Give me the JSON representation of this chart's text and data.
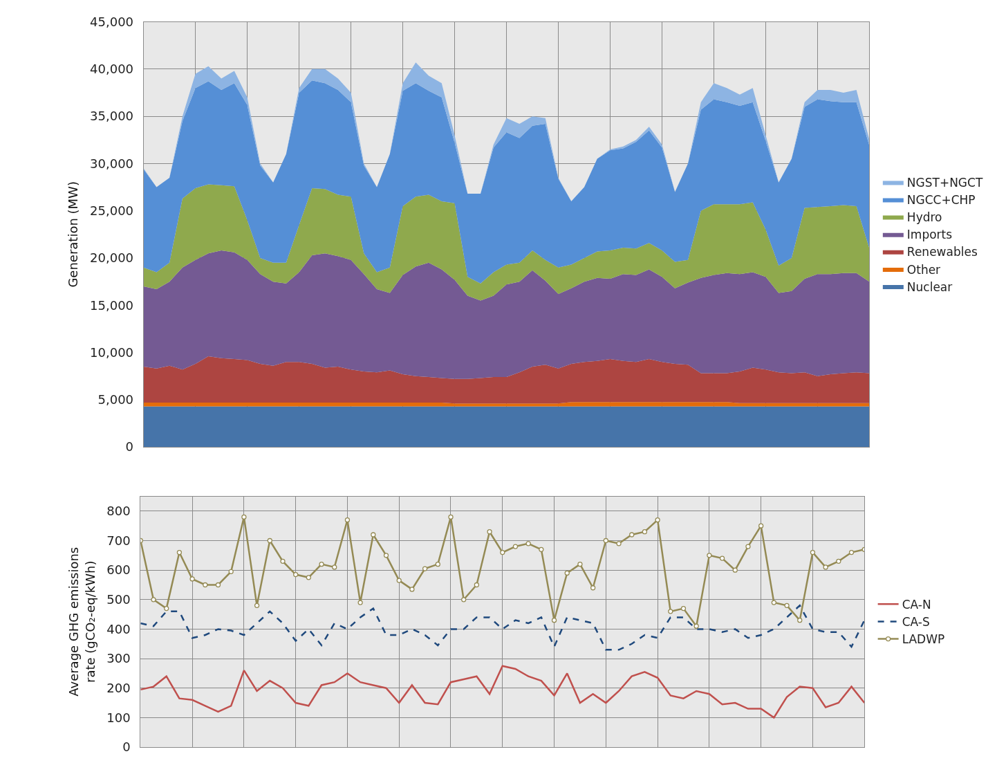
{
  "chart_data": [
    {
      "type": "area",
      "stacked": true,
      "ylabel": "Generation (MW)",
      "legend": "right",
      "grid": true,
      "categories": [
        null,
        null,
        null,
        null,
        null,
        null,
        null,
        null,
        null,
        null,
        null,
        null,
        null,
        null,
        null,
        null,
        null,
        null,
        null,
        null,
        null,
        null,
        null,
        null,
        null,
        null,
        null,
        null,
        null,
        null,
        null,
        null,
        null,
        null,
        null,
        null,
        null,
        null,
        null,
        null,
        null,
        null,
        null,
        null,
        null,
        null,
        null,
        null,
        null,
        null,
        null,
        null,
        null,
        null,
        null,
        null,
        null
      ],
      "ylim": [
        0,
        45000
      ],
      "yticks": [
        {
          "value": 0,
          "label": "0"
        },
        {
          "value": 5000,
          "label": "5,000"
        },
        {
          "value": 10000,
          "label": "10,000"
        },
        {
          "value": 15000,
          "label": "15,000"
        },
        {
          "value": 20000,
          "label": "20,000"
        },
        {
          "value": 25000,
          "label": "25,000"
        },
        {
          "value": 30000,
          "label": "30,000"
        },
        {
          "value": 35000,
          "label": "35,000"
        },
        {
          "value": 40000,
          "label": "40,000"
        },
        {
          "value": 45000,
          "label": "45,000"
        }
      ],
      "series": [
        {
          "name": "Nuclear",
          "color": "#4674a9",
          "values": [
            4300,
            4300,
            4300,
            4300,
            4300,
            4300,
            4300,
            4300,
            4300,
            4300,
            4300,
            4300,
            4300,
            4300,
            4300,
            4300,
            4300,
            4300,
            4300,
            4300,
            4300,
            4300,
            4300,
            4300,
            4300,
            4300,
            4300,
            4300,
            4300,
            4300,
            4300,
            4300,
            4300,
            4300,
            4300,
            4300,
            4300,
            4300,
            4300,
            4300,
            4300,
            4300,
            4300,
            4300,
            4300,
            4300,
            4300,
            4300,
            4300,
            4300,
            4300,
            4300,
            4300,
            4300,
            4300,
            4300,
            4300
          ]
        },
        {
          "name": "Other",
          "color": "#e46c0a",
          "values": [
            400,
            400,
            400,
            400,
            400,
            400,
            400,
            400,
            400,
            400,
            400,
            400,
            400,
            400,
            400,
            400,
            400,
            400,
            400,
            400,
            400,
            400,
            400,
            400,
            300,
            300,
            300,
            300,
            300,
            300,
            300,
            300,
            300,
            450,
            450,
            450,
            450,
            450,
            450,
            450,
            450,
            450,
            450,
            450,
            450,
            450,
            350,
            350,
            350,
            350,
            350,
            350,
            350,
            350,
            350,
            350,
            350
          ]
        },
        {
          "name": "Renewables",
          "color": "#ad4541",
          "values": [
            3800,
            3600,
            3900,
            3500,
            4100,
            4900,
            4700,
            4600,
            4500,
            4100,
            3900,
            4300,
            4300,
            4100,
            3700,
            3800,
            3500,
            3300,
            3200,
            3400,
            3000,
            2800,
            2700,
            2600,
            2600,
            2600,
            2700,
            2800,
            2800,
            3300,
            3900,
            4100,
            3700,
            4050,
            4250,
            4350,
            4550,
            4350,
            4250,
            4550,
            4250,
            4050,
            3950,
            3050,
            3050,
            3050,
            3350,
            3750,
            3550,
            3250,
            3150,
            3250,
            2850,
            3050,
            3150,
            3250,
            3150
          ]
        },
        {
          "name": "Imports",
          "color": "#745a93",
          "values": [
            8500,
            8400,
            8900,
            10800,
            11000,
            10900,
            11400,
            11300,
            10600,
            9500,
            8900,
            8300,
            9500,
            11500,
            12100,
            11700,
            11600,
            10300,
            8800,
            8200,
            10500,
            11600,
            12100,
            11500,
            10500,
            8800,
            8200,
            8600,
            9800,
            9600,
            10200,
            8900,
            7900,
            8000,
            8500,
            8800,
            8500,
            9200,
            9200,
            9500,
            9000,
            8000,
            8700,
            10100,
            10400,
            10600,
            10300,
            10100,
            9800,
            8400,
            8700,
            9900,
            10800,
            10600,
            10600,
            10500,
            9700
          ]
        },
        {
          "name": "Hydro",
          "color": "#8fa94d",
          "values": [
            2000,
            1800,
            2000,
            7300,
            7600,
            7300,
            6900,
            7000,
            4200,
            1700,
            2000,
            2200,
            5000,
            7100,
            6800,
            6500,
            6700,
            2200,
            1800,
            2700,
            7300,
            7400,
            7200,
            7200,
            8100,
            2000,
            1800,
            2500,
            2100,
            2000,
            2100,
            2200,
            2800,
            2500,
            2500,
            2800,
            3000,
            2800,
            2800,
            2800,
            2800,
            2800,
            2400,
            7100,
            7500,
            7300,
            7400,
            7400,
            5000,
            2900,
            3500,
            7500,
            7100,
            7200,
            7200,
            7100,
            3500
          ]
        },
        {
          "name": "NGCC+CHP",
          "color": "#558fd6",
          "values": [
            10400,
            9000,
            9000,
            8200,
            10600,
            10900,
            10100,
            10900,
            12200,
            9800,
            8500,
            11500,
            14000,
            11400,
            11200,
            11100,
            10000,
            9300,
            9000,
            12000,
            12200,
            12000,
            11000,
            11000,
            6400,
            8800,
            9500,
            13200,
            14000,
            13200,
            13200,
            14400,
            9400,
            6700,
            7500,
            9800,
            10600,
            10500,
            11300,
            11900,
            10900,
            7400,
            10200,
            10700,
            11100,
            10800,
            10400,
            10600,
            9400,
            8800,
            10500,
            10700,
            11400,
            11100,
            10900,
            11000,
            10900
          ]
        },
        {
          "name": "NGST+NGCT",
          "color": "#8db4e3",
          "values": [
            100,
            0,
            0,
            500,
            1500,
            1600,
            1200,
            1300,
            800,
            200,
            0,
            0,
            500,
            1200,
            1500,
            1200,
            1000,
            200,
            0,
            0,
            800,
            2200,
            1600,
            1500,
            800,
            0,
            0,
            300,
            1500,
            1500,
            1000,
            600,
            100,
            0,
            0,
            0,
            100,
            200,
            200,
            400,
            300,
            0,
            0,
            800,
            1700,
            1500,
            1200,
            1500,
            600,
            0,
            0,
            500,
            1000,
            1200,
            1000,
            1300,
            600
          ]
        }
      ]
    },
    {
      "type": "line",
      "ylabel": "Average GHG emissions\nrate (gCO₂-eq/kWh)",
      "legend": "right",
      "grid": true,
      "categories": [
        null,
        null,
        null,
        null,
        null,
        null,
        null,
        null,
        null,
        null,
        null,
        null,
        null,
        null,
        null,
        null,
        null,
        null,
        null,
        null,
        null,
        null,
        null,
        null,
        null,
        null,
        null,
        null,
        null,
        null,
        null,
        null,
        null,
        null,
        null,
        null,
        null,
        null,
        null,
        null,
        null,
        null,
        null,
        null,
        null,
        null,
        null,
        null,
        null,
        null,
        null,
        null,
        null,
        null,
        null,
        null,
        null
      ],
      "ylim": [
        0,
        850
      ],
      "yticks": [
        0,
        100,
        200,
        300,
        400,
        500,
        600,
        700,
        800
      ],
      "series": [
        {
          "name": "CA-N",
          "color": "#c0504d",
          "line_style": "solid",
          "marker": "none",
          "values": [
            195,
            205,
            240,
            165,
            160,
            140,
            120,
            140,
            260,
            190,
            225,
            200,
            150,
            140,
            210,
            220,
            250,
            220,
            210,
            200,
            150,
            210,
            150,
            145,
            220,
            230,
            240,
            180,
            275,
            265,
            240,
            225,
            175,
            250,
            150,
            180,
            150,
            190,
            240,
            255,
            235,
            175,
            165,
            190,
            180,
            145,
            150,
            130,
            130,
            100,
            170,
            205,
            200,
            135,
            150,
            205,
            150
          ]
        },
        {
          "name": "CA-S",
          "color": "#1f497d",
          "line_style": "dashed",
          "marker": "none",
          "values": [
            420,
            410,
            460,
            460,
            370,
            380,
            400,
            395,
            380,
            420,
            460,
            420,
            360,
            400,
            345,
            420,
            400,
            440,
            470,
            380,
            380,
            400,
            380,
            345,
            400,
            400,
            440,
            440,
            400,
            430,
            420,
            440,
            340,
            440,
            430,
            420,
            330,
            330,
            350,
            380,
            370,
            440,
            440,
            400,
            400,
            390,
            400,
            370,
            380,
            400,
            440,
            480,
            400,
            390,
            390,
            340,
            430
          ]
        },
        {
          "name": "LADWP",
          "color": "#948a54",
          "line_style": "solid",
          "marker": "circle",
          "values": [
            700,
            500,
            470,
            660,
            570,
            550,
            550,
            595,
            780,
            480,
            700,
            630,
            585,
            575,
            620,
            610,
            770,
            490,
            720,
            650,
            565,
            535,
            605,
            620,
            780,
            500,
            550,
            730,
            660,
            680,
            690,
            670,
            430,
            590,
            620,
            540,
            700,
            690,
            720,
            730,
            770,
            460,
            470,
            410,
            650,
            640,
            600,
            680,
            750,
            490,
            480,
            430,
            660,
            610,
            630,
            660,
            670
          ]
        }
      ]
    }
  ]
}
